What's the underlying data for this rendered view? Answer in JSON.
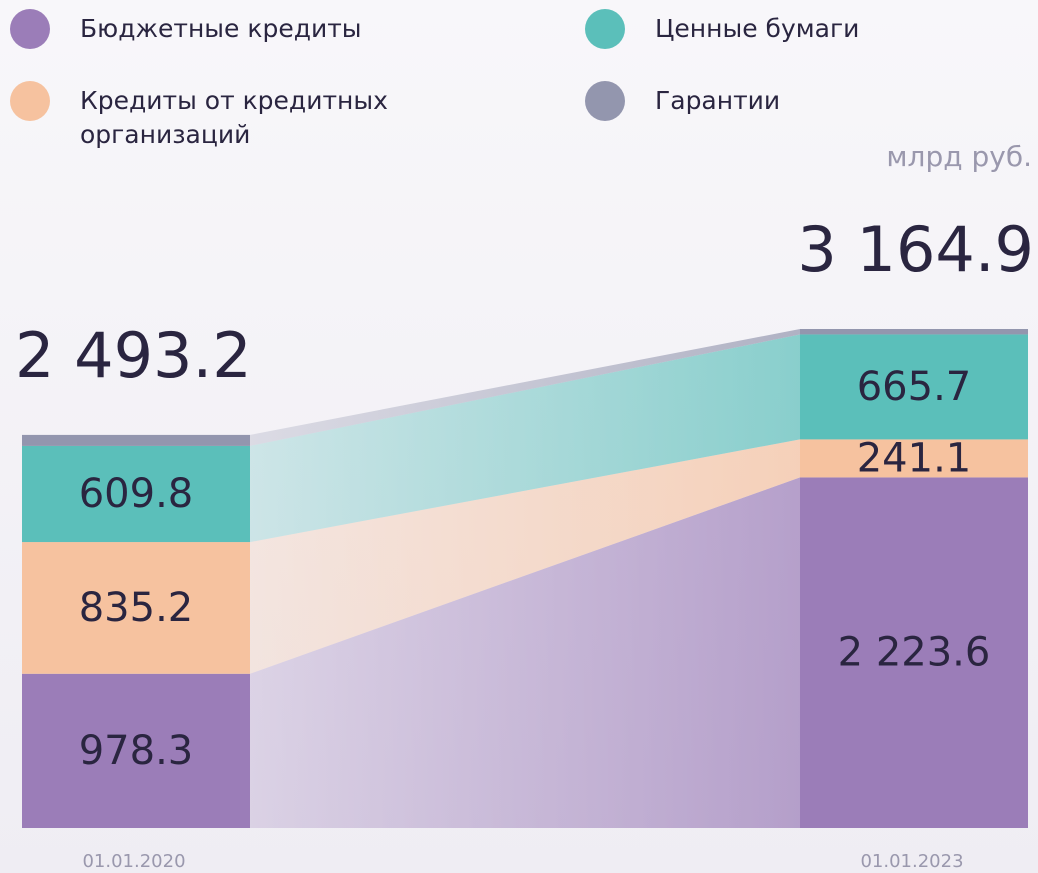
{
  "chart_data": {
    "type": "bar",
    "stacked": true,
    "unit": "млрд руб.",
    "categories": [
      "01.01.2020",
      "01.01.2023"
    ],
    "totals": [
      2493.2,
      3164.9
    ],
    "total_labels": [
      "2 493.2",
      "3 164.9"
    ],
    "series": [
      {
        "name": "Бюджетные кредиты",
        "color": "#9b7db8",
        "values": [
          978.3,
          2223.6
        ],
        "value_labels": [
          "978.3",
          "2 223.6"
        ]
      },
      {
        "name": "Кредиты от кредитных организаций",
        "color": "#f6c29f",
        "values": [
          835.2,
          241.1
        ],
        "value_labels": [
          "835.2",
          "241.1"
        ]
      },
      {
        "name": "Ценные бумаги",
        "color": "#5bbfba",
        "values": [
          609.8,
          665.7
        ],
        "value_labels": [
          "609.8",
          "665.7"
        ]
      },
      {
        "name": "Гарантии",
        "color": "#9396ae",
        "values": [
          69.9,
          34.5
        ]
      }
    ]
  }
}
